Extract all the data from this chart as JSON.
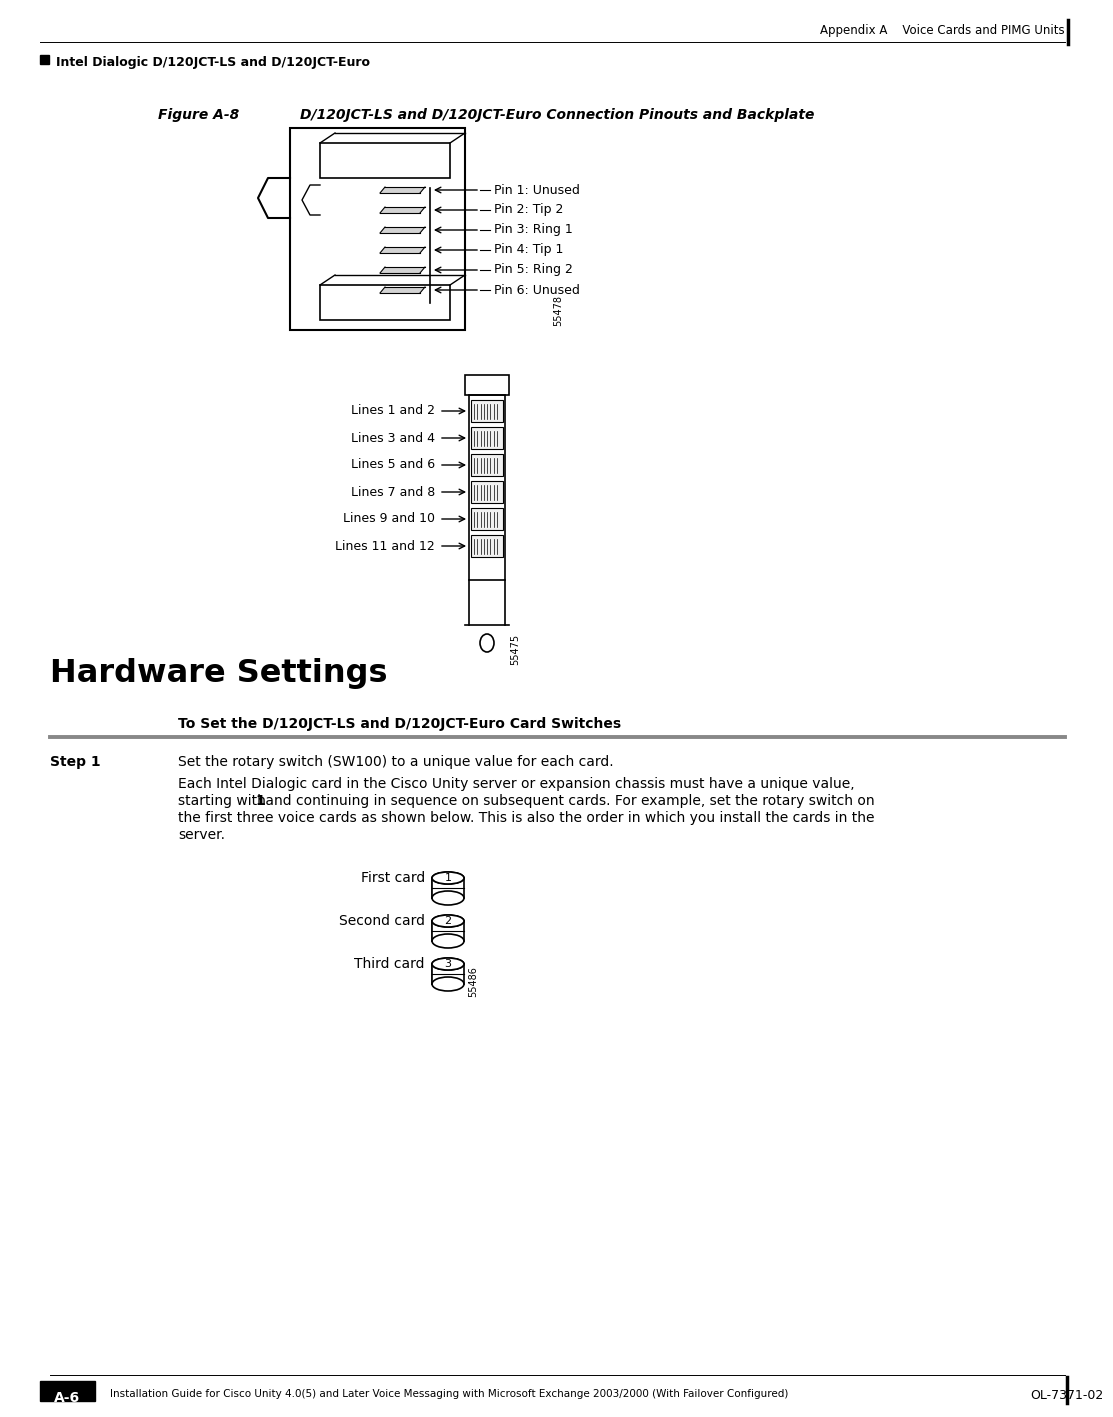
{
  "bg_color": "#ffffff",
  "header_text": "Appendix A    Voice Cards and PIMG Units",
  "subheader_text": "Intel Dialogic D/120JCT-LS and D/120JCT-Euro",
  "figure_label": "Figure A-8",
  "figure_caption": "D/120JCT-LS and D/120JCT-Euro Connection Pinouts and Backplate",
  "pin_labels": [
    "Pin 1: Unused",
    "Pin 2: Tip 2",
    "Pin 3: Ring 1",
    "Pin 4: Tip 1",
    "Pin 5: Ring 2",
    "Pin 6: Unused"
  ],
  "line_labels": [
    "Lines 1 and 2",
    "Lines 3 and 4",
    "Lines 5 and 6",
    "Lines 7 and 8",
    "Lines 9 and 10",
    "Lines 11 and 12"
  ],
  "figure_code1": "55478",
  "figure_code2": "55475",
  "section_title": "Hardware Settings",
  "procedure_title": "To Set the D/120JCT-LS and D/120JCT-Euro Card Switches",
  "step1_label": "Step 1",
  "step1_text": "Set the rotary switch (SW100) to a unique value for each card.",
  "body_line1": "Each Intel Dialogic card in the Cisco Unity server or expansion chassis must have a unique value,",
  "body_line2a": "starting with ",
  "body_line2b": "1",
  "body_line2c": " and continuing in sequence on subsequent cards. For example, set the rotary switch on",
  "body_line3": "the first three voice cards as shown below. This is also the order in which you install the cards in the",
  "body_line4": "server.",
  "card_labels": [
    "First card",
    "Second card",
    "Third card"
  ],
  "card_numbers": [
    "1",
    "2",
    "3"
  ],
  "figure_code3": "55486",
  "footer_text": "Installation Guide for Cisco Unity 4.0(5) and Later Voice Messaging with Microsoft Exchange 2003/2000 (With Failover Configured)",
  "footer_right": "OL-7371-02",
  "footer_page": "A-6"
}
